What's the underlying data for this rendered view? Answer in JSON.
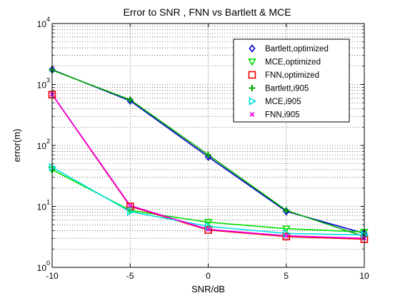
{
  "chart_data": {
    "type": "line",
    "title": "Error to SNR , FNN vs Bartlett & MCE",
    "xlabel": "SNR/dB",
    "ylabel": "error(m)",
    "x": [
      -10,
      -5,
      0,
      5,
      10
    ],
    "xlim": [
      -10,
      10
    ],
    "ylim": [
      1,
      10000
    ],
    "y_scale": "log",
    "grid": "dotted, including minor log grid",
    "legend_position": "top-right",
    "x_ticks": [
      "-10",
      "-5",
      "0",
      "5",
      "10"
    ],
    "y_ticks": [
      {
        "base": "10",
        "exp": "0"
      },
      {
        "base": "10",
        "exp": "1"
      },
      {
        "base": "10",
        "exp": "2"
      },
      {
        "base": "10",
        "exp": "3"
      },
      {
        "base": "10",
        "exp": "4"
      }
    ],
    "series": [
      {
        "name": "Bartlett,optimized",
        "color": "#0000cc",
        "marker": "diamond",
        "values": [
          1750,
          540,
          65,
          8.3,
          3.6
        ]
      },
      {
        "name": "MCE,optimized",
        "color": "#00dd00",
        "marker": "triangle-down",
        "values": [
          40,
          8.6,
          5.5,
          4.3,
          3.8
        ]
      },
      {
        "name": "FNN,optimized",
        "color": "#ee0000",
        "marker": "square",
        "values": [
          680,
          10,
          4.1,
          3.2,
          2.9
        ]
      },
      {
        "name": "Bartlett,i905",
        "color": "#00aa00",
        "marker": "plus",
        "values": [
          1720,
          560,
          70,
          8.6,
          3.2
        ]
      },
      {
        "name": "MCE,i905",
        "color": "#00e0e0",
        "marker": "triangle-right",
        "values": [
          44,
          8.2,
          4.7,
          3.6,
          3.4
        ]
      },
      {
        "name": "FNN,i905",
        "color": "#ee00ee",
        "marker": "x",
        "values": [
          690,
          10.3,
          4.2,
          3.3,
          3.0
        ]
      }
    ]
  }
}
